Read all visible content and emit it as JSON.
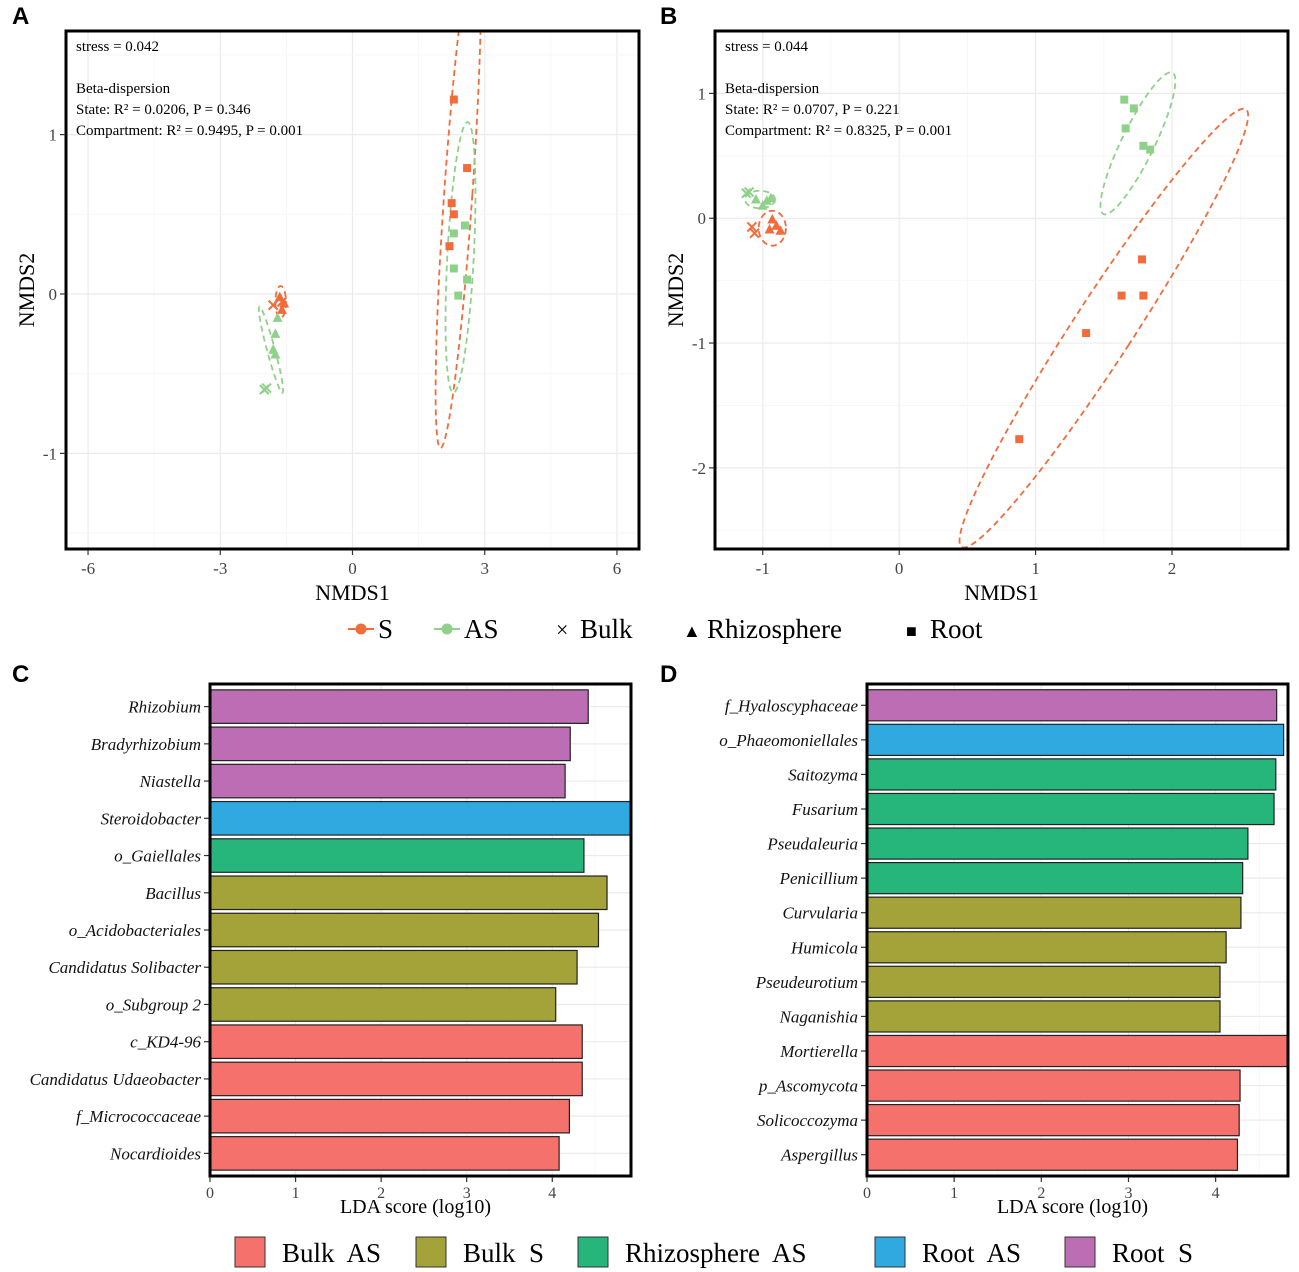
{
  "figure": {
    "panel_labels": [
      "A",
      "B",
      "C",
      "D"
    ],
    "top_legend": {
      "groups": [
        {
          "label": "S",
          "color": "#f26b3a",
          "marker": "circle"
        },
        {
          "label": "AS",
          "color": "#8fd18a",
          "marker": "circle"
        }
      ],
      "shapes": [
        {
          "label": "Bulk",
          "symbol": "×"
        },
        {
          "label": "Rhizosphere",
          "symbol": "▲"
        },
        {
          "label": "Root",
          "symbol": "■"
        }
      ]
    },
    "bottom_legend": [
      {
        "label": "Bulk  AS",
        "color": "#f4726b"
      },
      {
        "label": "Bulk  S",
        "color": "#a3a33a"
      },
      {
        "label": "Rhizosphere  AS",
        "color": "#26b67c"
      },
      {
        "label": "Root  AS",
        "color": "#2fa9df"
      },
      {
        "label": "Root  S",
        "color": "#bd6db3"
      }
    ]
  },
  "chart_data": [
    {
      "panel": "A",
      "type": "scatter",
      "xlabel": "NMDS1",
      "ylabel": "NMDS2",
      "xlim": [
        -6.5,
        6.5
      ],
      "ylim": [
        -1.6,
        1.65
      ],
      "xticks": [
        -6,
        -3,
        0,
        3,
        6
      ],
      "yticks": [
        -1,
        0,
        1
      ],
      "annotations": [
        "stress = 0.042",
        "",
        "Beta-dispersion",
        "State: R² = 0.0206, P = 0.346",
        "Compartment: R² = 0.9495, P = 0.001"
      ],
      "points": [
        {
          "x": 2.3,
          "y": 1.22,
          "group": "S",
          "shape": "Root"
        },
        {
          "x": 2.6,
          "y": 0.79,
          "group": "S",
          "shape": "Root"
        },
        {
          "x": 2.25,
          "y": 0.57,
          "group": "S",
          "shape": "Root"
        },
        {
          "x": 2.3,
          "y": 0.5,
          "group": "S",
          "shape": "Root"
        },
        {
          "x": 2.2,
          "y": 0.3,
          "group": "S",
          "shape": "Root"
        },
        {
          "x": 2.55,
          "y": 0.43,
          "group": "AS",
          "shape": "Root"
        },
        {
          "x": 2.3,
          "y": 0.38,
          "group": "AS",
          "shape": "Root"
        },
        {
          "x": 2.3,
          "y": 0.16,
          "group": "AS",
          "shape": "Root"
        },
        {
          "x": 2.6,
          "y": 0.09,
          "group": "AS",
          "shape": "Root"
        },
        {
          "x": 2.4,
          "y": -0.01,
          "group": "AS",
          "shape": "Root"
        },
        {
          "x": -1.8,
          "y": -0.07,
          "group": "S",
          "shape": "Bulk"
        },
        {
          "x": -1.6,
          "y": -0.05,
          "group": "S",
          "shape": "Bulk"
        },
        {
          "x": -1.65,
          "y": -0.02,
          "group": "S",
          "shape": "Rhizosphere"
        },
        {
          "x": -1.55,
          "y": -0.06,
          "group": "S",
          "shape": "Rhizosphere"
        },
        {
          "x": -1.6,
          "y": -0.1,
          "group": "S",
          "shape": "Rhizosphere"
        },
        {
          "x": -1.7,
          "y": -0.15,
          "group": "AS",
          "shape": "Rhizosphere"
        },
        {
          "x": -1.75,
          "y": -0.25,
          "group": "AS",
          "shape": "Rhizosphere"
        },
        {
          "x": -1.8,
          "y": -0.35,
          "group": "AS",
          "shape": "Rhizosphere"
        },
        {
          "x": -1.75,
          "y": -0.38,
          "group": "AS",
          "shape": "Rhizosphere"
        },
        {
          "x": -1.95,
          "y": -0.59,
          "group": "AS",
          "shape": "Bulk"
        },
        {
          "x": -2.0,
          "y": -0.6,
          "group": "AS",
          "shape": "Bulk"
        }
      ],
      "ellipses": [
        {
          "group": "S",
          "cx": 2.4,
          "cy": 0.63,
          "rx": 0.32,
          "ry": 1.6,
          "angle": 4
        },
        {
          "group": "AS",
          "cx": 2.45,
          "cy": 0.23,
          "rx": 0.3,
          "ry": 0.85,
          "angle": 3
        },
        {
          "group": "S",
          "cx": -1.63,
          "cy": -0.05,
          "rx": 0.12,
          "ry": 0.1,
          "angle": 0
        },
        {
          "group": "AS",
          "cx": -1.85,
          "cy": -0.35,
          "rx": 0.09,
          "ry": 0.28,
          "angle": -15
        }
      ]
    },
    {
      "panel": "B",
      "type": "scatter",
      "xlabel": "NMDS1",
      "ylabel": "NMDS2",
      "xlim": [
        -1.35,
        2.85
      ],
      "ylim": [
        -2.65,
        1.5
      ],
      "xticks": [
        -1,
        0,
        1,
        2
      ],
      "yticks": [
        -2,
        -1,
        0,
        1
      ],
      "annotations": [
        "stress = 0.044",
        "",
        "Beta-dispersion",
        "State: R² = 0.0707, P = 0.221",
        "Compartment: R² = 0.8325, P = 0.001"
      ],
      "points": [
        {
          "x": 1.65,
          "y": 0.95,
          "group": "AS",
          "shape": "Root"
        },
        {
          "x": 1.72,
          "y": 0.88,
          "group": "AS",
          "shape": "Root"
        },
        {
          "x": 1.66,
          "y": 0.72,
          "group": "AS",
          "shape": "Root"
        },
        {
          "x": 1.79,
          "y": 0.58,
          "group": "AS",
          "shape": "Root"
        },
        {
          "x": 1.84,
          "y": 0.55,
          "group": "AS",
          "shape": "Root"
        },
        {
          "x": 1.78,
          "y": -0.33,
          "group": "S",
          "shape": "Root"
        },
        {
          "x": 1.63,
          "y": -0.62,
          "group": "S",
          "shape": "Root"
        },
        {
          "x": 1.79,
          "y": -0.62,
          "group": "S",
          "shape": "Root"
        },
        {
          "x": 1.37,
          "y": -0.92,
          "group": "S",
          "shape": "Root"
        },
        {
          "x": 0.88,
          "y": -1.77,
          "group": "S",
          "shape": "Root"
        },
        {
          "x": -1.12,
          "y": 0.2,
          "group": "AS",
          "shape": "Bulk"
        },
        {
          "x": -1.1,
          "y": 0.21,
          "group": "AS",
          "shape": "Bulk"
        },
        {
          "x": -1.05,
          "y": 0.15,
          "group": "AS",
          "shape": "Rhizosphere"
        },
        {
          "x": -1.0,
          "y": 0.1,
          "group": "AS",
          "shape": "Rhizosphere"
        },
        {
          "x": -0.97,
          "y": 0.14,
          "group": "AS",
          "shape": "Rhizosphere"
        },
        {
          "x": -0.94,
          "y": 0.16,
          "group": "AS",
          "shape": "Rhizosphere"
        },
        {
          "x": -1.08,
          "y": -0.07,
          "group": "S",
          "shape": "Bulk"
        },
        {
          "x": -1.06,
          "y": -0.12,
          "group": "S",
          "shape": "Bulk"
        },
        {
          "x": -0.93,
          "y": -0.01,
          "group": "S",
          "shape": "Rhizosphere"
        },
        {
          "x": -0.9,
          "y": -0.06,
          "group": "S",
          "shape": "Rhizosphere"
        },
        {
          "x": -0.87,
          "y": -0.1,
          "group": "S",
          "shape": "Rhizosphere"
        },
        {
          "x": -0.95,
          "y": -0.09,
          "group": "S",
          "shape": "Rhizosphere"
        }
      ],
      "ellipses": [
        {
          "group": "AS",
          "cx": 1.75,
          "cy": 0.6,
          "rx": 0.12,
          "ry": 0.63,
          "angle": 26
        },
        {
          "group": "S",
          "cx": 1.5,
          "cy": -0.88,
          "rx": 0.22,
          "ry": 2.09,
          "angle": 33
        },
        {
          "group": "S",
          "cx": -0.93,
          "cy": -0.08,
          "rx": 0.1,
          "ry": 0.14,
          "angle": 0
        },
        {
          "group": "AS",
          "cx": -1.02,
          "cy": 0.15,
          "rx": 0.11,
          "ry": 0.07,
          "angle": 0
        }
      ]
    },
    {
      "panel": "C",
      "type": "bar",
      "orientation": "horizontal",
      "xlabel": "LDA score (log10)",
      "xlim": [
        0,
        4.92
      ],
      "xticks": [
        0,
        1,
        2,
        3,
        4
      ],
      "categories": [
        "Rhizobium",
        "Bradyrhizobium",
        "Niastella",
        "Steroidobacter",
        "o_Gaiellales",
        "Bacillus",
        "o_Acidobacteriales",
        "Candidatus Solibacter",
        "o_Subgroup 2",
        "c_KD4-96",
        "Candidatus Udaeobacter",
        "f_Micrococcaceae",
        "Nocardioides"
      ],
      "values": [
        4.42,
        4.21,
        4.15,
        4.92,
        4.37,
        4.64,
        4.54,
        4.29,
        4.04,
        4.35,
        4.35,
        4.2,
        4.08
      ],
      "groups": [
        "Root  S",
        "Root  S",
        "Root  S",
        "Root  AS",
        "Rhizosphere  AS",
        "Bulk  S",
        "Bulk  S",
        "Bulk  S",
        "Bulk  S",
        "Bulk  AS",
        "Bulk  AS",
        "Bulk  AS",
        "Bulk  AS"
      ]
    },
    {
      "panel": "D",
      "type": "bar",
      "orientation": "horizontal",
      "xlabel": "LDA score (log10)",
      "xlim": [
        0,
        4.83
      ],
      "xticks": [
        0,
        1,
        2,
        3,
        4
      ],
      "categories": [
        "f_Hyaloscyphaceae",
        "o_Phaeomoniellales",
        "Saitozyma",
        "Fusarium",
        "Pseudaleuria",
        "Penicillium",
        "Curvularia",
        "Humicola",
        "Pseudeurotium",
        "Naganishia",
        "Mortierella",
        "p_Ascomycota",
        "Solicoccozyma",
        "Aspergillus"
      ],
      "values": [
        4.7,
        4.78,
        4.69,
        4.67,
        4.37,
        4.31,
        4.29,
        4.12,
        4.05,
        4.05,
        4.83,
        4.28,
        4.27,
        4.25
      ],
      "groups": [
        "Root  S",
        "Root  AS",
        "Rhizosphere  AS",
        "Rhizosphere  AS",
        "Rhizosphere  AS",
        "Rhizosphere  AS",
        "Bulk  S",
        "Bulk  S",
        "Bulk  S",
        "Bulk  S",
        "Bulk  AS",
        "Bulk  AS",
        "Bulk  AS",
        "Bulk  AS"
      ]
    }
  ]
}
